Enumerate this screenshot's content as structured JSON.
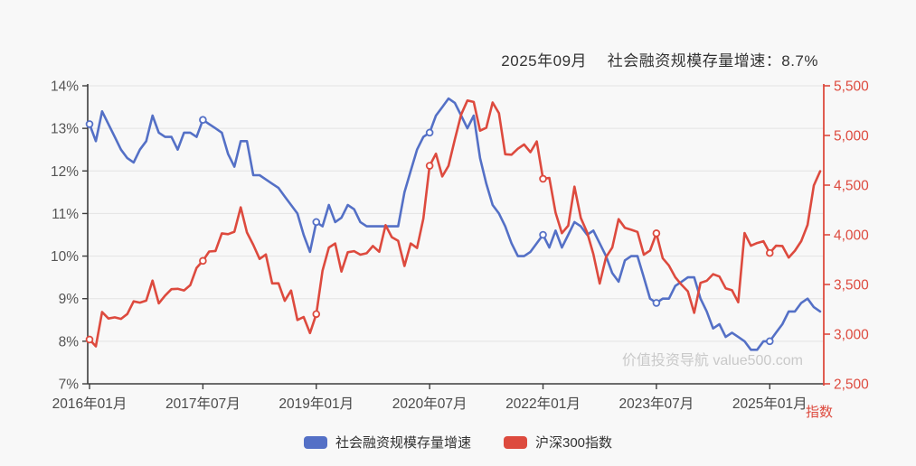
{
  "title": "2025年09月　 社会融资规模存量增速：8.7%",
  "watermark": "价值投资导航 value500.com",
  "colors": {
    "background": "#f8f8f8",
    "grid": "#e3e3e3",
    "axis_dark": "#3d3d3d",
    "axis_label": "#555555",
    "blue_series": "#5470c6",
    "red_series": "#dd4a3e",
    "title_text": "#333333",
    "watermark_text": "#c9c9c9"
  },
  "chart_data": {
    "type": "line",
    "title": "2025年09月　 社会融资规模存量增速：8.7%",
    "x_unit": "month",
    "x_start": "2016-01",
    "x_end": "2025-09",
    "x_point_count": 117,
    "x_tick_interval_months": 18,
    "x_tick_labels": [
      "2016年01月",
      "2017年07月",
      "2019年01月",
      "2020年07月",
      "2022年01月",
      "2023年07月",
      "2025年01月"
    ],
    "marker_every_n_months": 18,
    "grid": "horizontal-only",
    "legend_position": "bottom-center",
    "left_axis": {
      "min": 7,
      "max": 14,
      "tick_step": 1,
      "tick_labels": [
        "7%",
        "8%",
        "9%",
        "10%",
        "11%",
        "12%",
        "13%",
        "14%"
      ],
      "label": ""
    },
    "right_axis": {
      "min": 2500,
      "max": 5500,
      "tick_step": 500,
      "tick_labels": [
        "2,500",
        "3,000",
        "3,500",
        "4,000",
        "4,500",
        "5,000",
        "5,500"
      ],
      "label": "指数"
    },
    "series": [
      {
        "name": "社会融资规模存量增速",
        "axis": "left",
        "unit": "%",
        "color": "#5470c6",
        "values": [
          13.1,
          12.7,
          13.4,
          13.1,
          12.8,
          12.5,
          12.3,
          12.2,
          12.5,
          12.7,
          13.3,
          12.9,
          12.8,
          12.8,
          12.5,
          12.9,
          12.9,
          12.8,
          13.2,
          13.1,
          13.0,
          12.9,
          12.4,
          12.1,
          12.7,
          12.7,
          11.9,
          11.9,
          11.8,
          11.7,
          11.6,
          11.4,
          11.2,
          11.0,
          10.5,
          10.1,
          10.8,
          10.7,
          11.2,
          10.8,
          10.9,
          11.2,
          11.1,
          10.8,
          10.7,
          10.7,
          10.7,
          10.7,
          10.7,
          10.7,
          11.5,
          12.0,
          12.5,
          12.8,
          12.9,
          13.3,
          13.5,
          13.7,
          13.6,
          13.3,
          13.0,
          13.3,
          12.3,
          11.7,
          11.2,
          11.0,
          10.7,
          10.3,
          10.0,
          10.0,
          10.1,
          10.3,
          10.5,
          10.2,
          10.6,
          10.2,
          10.5,
          10.8,
          10.7,
          10.5,
          10.6,
          10.3,
          10.0,
          9.6,
          9.4,
          9.9,
          10.0,
          10.0,
          9.5,
          9.0,
          8.9,
          9.0,
          9.0,
          9.3,
          9.4,
          9.5,
          9.5,
          9.0,
          8.7,
          8.3,
          8.4,
          8.1,
          8.2,
          8.1,
          8.0,
          7.8,
          7.8,
          8.0,
          8.0,
          8.2,
          8.4,
          8.7,
          8.7,
          8.9,
          9.0,
          8.8,
          8.7
        ]
      },
      {
        "name": "沪深300指数",
        "axis": "right",
        "unit": "points",
        "color": "#dd4a3e",
        "values": [
          2946,
          2877,
          3223,
          3157,
          3169,
          3154,
          3203,
          3330,
          3317,
          3337,
          3539,
          3310,
          3388,
          3453,
          3456,
          3440,
          3493,
          3667,
          3738,
          3832,
          3837,
          4015,
          4006,
          4031,
          4276,
          4024,
          3899,
          3757,
          3802,
          3511,
          3512,
          3335,
          3439,
          3143,
          3173,
          3011,
          3202,
          3640,
          3872,
          3913,
          3630,
          3825,
          3835,
          3800,
          3815,
          3887,
          3829,
          4097,
          3976,
          3940,
          3686,
          3913,
          3867,
          4164,
          4695,
          4816,
          4587,
          4695,
          4960,
          5211,
          5352,
          5337,
          5048,
          5078,
          5332,
          5224,
          4811,
          4806,
          4866,
          4909,
          4832,
          4940,
          4564,
          4573,
          4223,
          4016,
          4092,
          4485,
          4170,
          4024,
          3805,
          3509,
          3775,
          3872,
          4157,
          4070,
          4051,
          4029,
          3800,
          3842,
          4015,
          3765,
          3690,
          3573,
          3496,
          3431,
          3215,
          3516,
          3537,
          3604,
          3580,
          3462,
          3442,
          3321,
          4018,
          3890,
          3917,
          3935,
          3817,
          3890,
          3887,
          3771,
          3840,
          3936,
          4100,
          4496,
          4640
        ]
      }
    ]
  }
}
